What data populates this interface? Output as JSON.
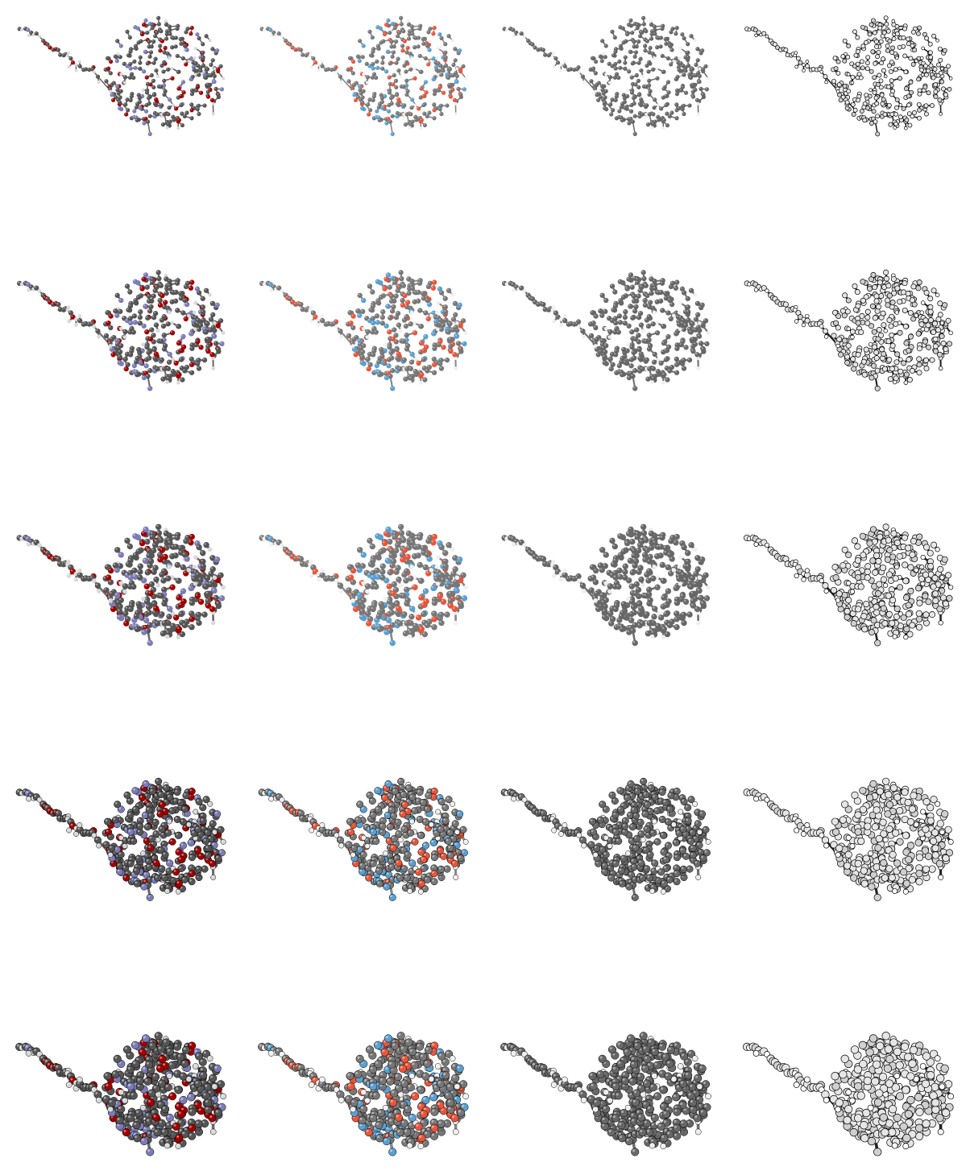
{
  "figure": {
    "rows": [
      {
        "row_id": "row-1",
        "styles": [
          "cpk-classic",
          "cpk-pastel",
          "gray",
          "white-outline"
        ]
      },
      {
        "row_id": "row-2",
        "styles": [
          "cpk-classic",
          "cpk-pastel",
          "gray",
          "white-outline"
        ]
      },
      {
        "row_id": "row-3",
        "styles": [
          "cpk-classic",
          "cpk-pastel",
          "gray",
          "white-outline"
        ]
      },
      {
        "row_id": "row-4",
        "styles": [
          "cpk-classic",
          "cpk-pastel",
          "gray",
          "white-outline"
        ]
      },
      {
        "row_id": "row-5",
        "styles": [
          "cpk-classic",
          "cpk-pastel",
          "gray",
          "white-outline"
        ]
      }
    ],
    "palettes": {
      "cpk-classic": {
        "carbon": "#555555",
        "oxygen": "#a10000",
        "nitrogen": "#7b7bb8",
        "hydrogen": "#d8d8d8",
        "bond": "#6a6a6a"
      },
      "cpk-pastel": {
        "carbon": "#777777",
        "oxygen": "#e8553b",
        "nitrogen": "#5b9fd0",
        "hydrogen": "#f0f0f0",
        "bond": "#888888"
      },
      "gray": {
        "carbon": "#666666",
        "oxygen": "#6a6a6a",
        "nitrogen": "#6a6a6a",
        "hydrogen": "#eeeeee",
        "bond": "#707070"
      },
      "white-outline": {
        "carbon": "#e6e6e6",
        "oxygen": "#d0d0d0",
        "nitrogen": "#d0d0d0",
        "hydrogen": "#ffffff",
        "bond": "#111111"
      }
    }
  }
}
